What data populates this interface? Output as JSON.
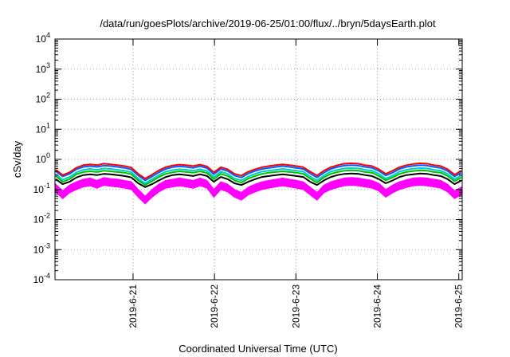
{
  "chart_data": {
    "type": "line",
    "title": "/data/run/goesPlots/archive/2019-06-25/01:00/flux/../bryn/5daysEarth.plot",
    "xlabel": "Coordinated Universal Time (UTC)",
    "ylabel": "cSv/day",
    "yscale": "log",
    "ylim": [
      0.0001,
      10000
    ],
    "y_ticks": [
      {
        "base": "10",
        "exp": "-4"
      },
      {
        "base": "10",
        "exp": "-3"
      },
      {
        "base": "10",
        "exp": "-2"
      },
      {
        "base": "10",
        "exp": "-1"
      },
      {
        "base": "10",
        "exp": "0"
      },
      {
        "base": "10",
        "exp": "1"
      },
      {
        "base": "10",
        "exp": "2"
      },
      {
        "base": "10",
        "exp": "3"
      },
      {
        "base": "10",
        "exp": "4"
      }
    ],
    "xlim": [
      "2019-06-20 01:00",
      "2019-06-25 01:00"
    ],
    "x_ticks": [
      "2019-6-21",
      "2019-6-22",
      "2019-6-23",
      "2019-6-24",
      "2019-6-25"
    ],
    "grid": true,
    "series": [
      {
        "color": "#ff00ff",
        "style": "filled-band",
        "base_values": [
          0.15,
          0.09,
          0.14,
          0.18,
          0.22,
          0.24,
          0.2,
          0.25,
          0.23,
          0.22,
          0.2,
          0.18,
          0.1,
          0.06,
          0.1,
          0.15,
          0.2,
          0.22,
          0.24,
          0.22,
          0.2,
          0.24,
          0.2,
          0.1,
          0.18,
          0.15,
          0.1,
          0.08,
          0.12,
          0.15,
          0.18,
          0.2,
          0.22,
          0.24,
          0.22,
          0.2,
          0.18,
          0.12,
          0.08,
          0.14,
          0.18,
          0.21,
          0.24,
          0.25,
          0.24,
          0.22,
          0.2,
          0.16,
          0.1,
          0.14,
          0.18,
          0.21,
          0.24,
          0.25,
          0.24,
          0.22,
          0.2,
          0.15,
          0.09,
          0.12
        ]
      },
      {
        "color": "#000000",
        "values": [
          0.22,
          0.15,
          0.18,
          0.25,
          0.3,
          0.32,
          0.3,
          0.33,
          0.32,
          0.3,
          0.28,
          0.25,
          0.16,
          0.12,
          0.15,
          0.2,
          0.26,
          0.3,
          0.32,
          0.3,
          0.28,
          0.32,
          0.28,
          0.18,
          0.26,
          0.22,
          0.16,
          0.14,
          0.18,
          0.22,
          0.26,
          0.28,
          0.3,
          0.32,
          0.3,
          0.28,
          0.26,
          0.18,
          0.14,
          0.2,
          0.26,
          0.3,
          0.33,
          0.34,
          0.33,
          0.3,
          0.28,
          0.22,
          0.16,
          0.2,
          0.26,
          0.3,
          0.32,
          0.34,
          0.33,
          0.3,
          0.28,
          0.22,
          0.15,
          0.2
        ]
      },
      {
        "color": "#00c000",
        "values": [
          0.28,
          0.18,
          0.22,
          0.32,
          0.38,
          0.4,
          0.38,
          0.42,
          0.4,
          0.38,
          0.36,
          0.32,
          0.2,
          0.14,
          0.19,
          0.26,
          0.33,
          0.37,
          0.4,
          0.38,
          0.36,
          0.4,
          0.35,
          0.22,
          0.33,
          0.28,
          0.2,
          0.17,
          0.23,
          0.28,
          0.33,
          0.36,
          0.38,
          0.4,
          0.38,
          0.36,
          0.33,
          0.23,
          0.17,
          0.25,
          0.33,
          0.38,
          0.42,
          0.43,
          0.42,
          0.38,
          0.36,
          0.28,
          0.2,
          0.25,
          0.33,
          0.38,
          0.41,
          0.43,
          0.42,
          0.38,
          0.36,
          0.28,
          0.19,
          0.25
        ]
      },
      {
        "color": "#00cccc",
        "values": [
          0.32,
          0.21,
          0.26,
          0.37,
          0.45,
          0.48,
          0.45,
          0.5,
          0.48,
          0.45,
          0.42,
          0.37,
          0.23,
          0.16,
          0.22,
          0.3,
          0.39,
          0.44,
          0.47,
          0.45,
          0.42,
          0.47,
          0.41,
          0.26,
          0.39,
          0.33,
          0.23,
          0.2,
          0.27,
          0.33,
          0.39,
          0.42,
          0.45,
          0.48,
          0.45,
          0.42,
          0.39,
          0.27,
          0.2,
          0.29,
          0.39,
          0.45,
          0.5,
          0.51,
          0.5,
          0.45,
          0.42,
          0.33,
          0.23,
          0.29,
          0.39,
          0.45,
          0.49,
          0.51,
          0.5,
          0.45,
          0.42,
          0.33,
          0.22,
          0.29
        ]
      },
      {
        "color": "#0060ff",
        "values": [
          0.4,
          0.27,
          0.33,
          0.47,
          0.56,
          0.6,
          0.56,
          0.62,
          0.6,
          0.56,
          0.52,
          0.46,
          0.29,
          0.2,
          0.27,
          0.37,
          0.48,
          0.55,
          0.59,
          0.56,
          0.52,
          0.59,
          0.51,
          0.32,
          0.48,
          0.41,
          0.29,
          0.25,
          0.34,
          0.41,
          0.48,
          0.52,
          0.56,
          0.6,
          0.56,
          0.52,
          0.48,
          0.34,
          0.25,
          0.36,
          0.48,
          0.56,
          0.62,
          0.64,
          0.62,
          0.56,
          0.52,
          0.41,
          0.29,
          0.36,
          0.48,
          0.56,
          0.61,
          0.64,
          0.62,
          0.56,
          0.52,
          0.41,
          0.27,
          0.36
        ]
      },
      {
        "color": "#ff0000",
        "values": [
          0.45,
          0.3,
          0.37,
          0.53,
          0.64,
          0.68,
          0.64,
          0.72,
          0.68,
          0.64,
          0.6,
          0.53,
          0.33,
          0.23,
          0.31,
          0.43,
          0.55,
          0.63,
          0.67,
          0.64,
          0.6,
          0.67,
          0.58,
          0.37,
          0.55,
          0.47,
          0.33,
          0.29,
          0.39,
          0.47,
          0.55,
          0.6,
          0.64,
          0.68,
          0.64,
          0.6,
          0.55,
          0.39,
          0.29,
          0.42,
          0.55,
          0.64,
          0.72,
          0.74,
          0.72,
          0.64,
          0.6,
          0.47,
          0.33,
          0.42,
          0.55,
          0.64,
          0.7,
          0.74,
          0.72,
          0.64,
          0.6,
          0.47,
          0.31,
          0.42
        ]
      }
    ]
  }
}
